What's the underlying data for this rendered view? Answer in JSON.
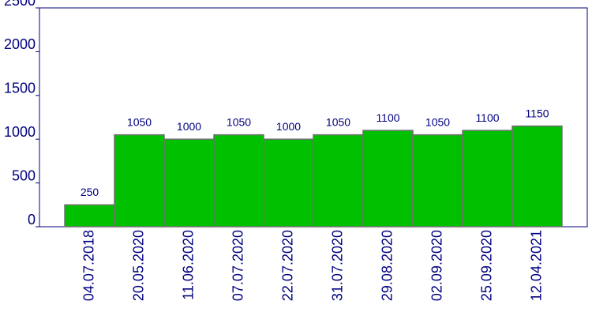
{
  "chart_data": {
    "type": "bar",
    "categories": [
      "04.07.2018",
      "20.05.2020",
      "11.06.2020",
      "07.07.2020",
      "22.07.2020",
      "31.07.2020",
      "29.08.2020",
      "02.09.2020",
      "25.09.2020",
      "12.04.2021"
    ],
    "values": [
      250,
      1050,
      1000,
      1050,
      1000,
      1050,
      1100,
      1050,
      1100,
      1150
    ],
    "color": "#00c000",
    "ylim": [
      0,
      2500
    ],
    "yticks": [
      0,
      500,
      1000,
      1500,
      2000,
      2500
    ]
  }
}
